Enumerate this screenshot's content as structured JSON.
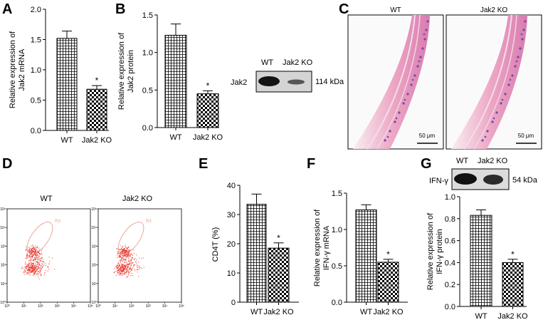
{
  "chart_data": [
    {
      "id": "A",
      "type": "bar",
      "panel_label": "A",
      "ylabel_lines": [
        "Relative expression of",
        "Jak2 mRNA"
      ],
      "categories": [
        "WT",
        "Jak2 KO"
      ],
      "values": [
        1.52,
        0.68
      ],
      "errors": [
        0.12,
        0.06
      ],
      "ylim": [
        0,
        2.0
      ],
      "yticks": [
        "0.0",
        "0.5",
        "1.0",
        "1.5",
        "2.0"
      ],
      "significance": [
        "",
        "*"
      ]
    },
    {
      "id": "B",
      "type": "bar",
      "panel_label": "B",
      "ylabel_lines": [
        "Relative expression of",
        "Jak2 protein"
      ],
      "categories": [
        "WT",
        "Jak2 KO"
      ],
      "values": [
        1.23,
        0.45
      ],
      "errors": [
        0.15,
        0.04
      ],
      "ylim": [
        0,
        1.5
      ],
      "yticks": [
        "0.0",
        "0.5",
        "1.0",
        "1.5"
      ],
      "significance": [
        "",
        "*"
      ]
    },
    {
      "id": "E",
      "type": "bar",
      "panel_label": "E",
      "ylabel_lines": [
        "CD4T (%)"
      ],
      "categories": [
        "WT",
        "Jak2 KO"
      ],
      "values": [
        33.5,
        18.5
      ],
      "errors": [
        3.5,
        1.8
      ],
      "ylim": [
        0,
        40
      ],
      "yticks": [
        "0",
        "10",
        "20",
        "30",
        "40"
      ],
      "significance": [
        "",
        "*"
      ]
    },
    {
      "id": "F",
      "type": "bar",
      "panel_label": "F",
      "ylabel_lines": [
        "Relative expression of",
        "IFN-γ mRNA"
      ],
      "categories": [
        "WT",
        "Jak2 KO"
      ],
      "values": [
        1.27,
        0.55
      ],
      "errors": [
        0.07,
        0.04
      ],
      "ylim": [
        0,
        1.5
      ],
      "yticks": [
        "0.0",
        "0.5",
        "1.0",
        "1.5"
      ],
      "significance": [
        "",
        "*"
      ]
    },
    {
      "id": "G",
      "type": "bar",
      "panel_label": "G",
      "ylabel_lines": [
        "Relative expression of",
        "IFN-γ protein"
      ],
      "categories": [
        "WT",
        "Jak2 KO"
      ],
      "values": [
        0.83,
        0.4
      ],
      "errors": [
        0.05,
        0.03
      ],
      "ylim": [
        0,
        1.0
      ],
      "yticks": [
        "0.0",
        "0.2",
        "0.4",
        "0.6",
        "0.8",
        "1.0"
      ],
      "significance": [
        "",
        "*"
      ]
    }
  ],
  "western_blots": {
    "jak2": {
      "lanes": [
        "WT",
        "Jak2 KO"
      ],
      "target": "Jak2",
      "size_label": "114 kDa"
    },
    "ifng": {
      "lanes": [
        "WT",
        "Jak2 KO"
      ],
      "target": "IFN-γ",
      "size_label": "54 kDa"
    }
  },
  "histology": {
    "panel_label": "C",
    "images": [
      {
        "title": "WT",
        "scale": "50 μm"
      },
      {
        "title": "Jak2 KO",
        "scale": "50 μm"
      }
    ]
  },
  "flow": {
    "panel_label": "D",
    "plots": [
      {
        "title": "WT",
        "gate": "R3"
      },
      {
        "title": "Jak2 KO",
        "gate": "R3"
      }
    ],
    "y_ticks": [
      "10⁵",
      "10⁴",
      "10³",
      "10²",
      "10¹",
      "10⁰"
    ],
    "x_ticks": [
      "10⁰",
      "10¹",
      "10²",
      "10³",
      "10⁴",
      "10⁵"
    ]
  },
  "colors": {
    "axis": "#000000",
    "bar_fill": "#ffffff",
    "dots": "#e8352a",
    "gate": "#e9a08f",
    "tissue": "#e9a6c2",
    "nuclei": "#6f4aa5"
  }
}
